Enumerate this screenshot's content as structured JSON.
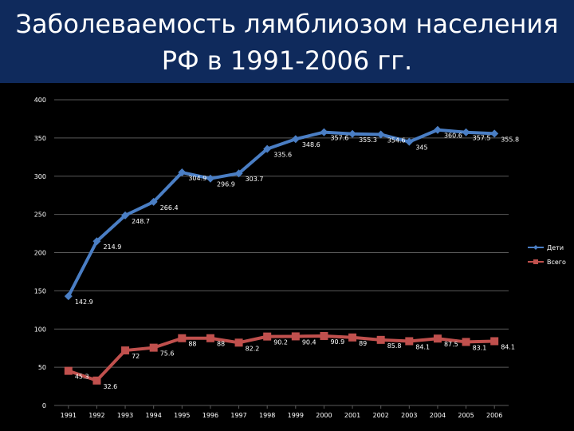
{
  "slide": {
    "title_line1": "Заболеваемость лямблиозом населения",
    "title_line2": "РФ в 1991-2006 гг."
  },
  "colors": {
    "title_band": "#0f2a5c",
    "background": "#000000",
    "series_children": "#4a7ec4",
    "series_total": "#c0504d",
    "grid": "#5a5a5a",
    "text": "#ffffff"
  },
  "chart_data": {
    "type": "line",
    "categories": [
      "1991",
      "1992",
      "1993",
      "1994",
      "1995",
      "1996",
      "1997",
      "1998",
      "1999",
      "2000",
      "2001",
      "2002",
      "2003",
      "2004",
      "2005",
      "2006"
    ],
    "series": [
      {
        "name": "Дети",
        "marker": "diamond",
        "values": [
          142.9,
          214.9,
          248.7,
          266.4,
          304.9,
          296.9,
          303.7,
          335.6,
          348.6,
          357.6,
          355.3,
          354.6,
          345,
          360.6,
          357.5,
          355.8
        ],
        "labels": [
          "142.9",
          "214.9",
          "248.7",
          "266.4",
          "304.9",
          "296.9",
          "303.7",
          "335.6",
          "348.6",
          "357.6",
          "355.3",
          "354.6",
          "345",
          "360.6",
          "357.5",
          "355.8"
        ]
      },
      {
        "name": "Всего",
        "marker": "square",
        "values": [
          45.3,
          32.6,
          72,
          75.6,
          88,
          88,
          82.2,
          90.2,
          90.4,
          90.9,
          89,
          85.8,
          84.1,
          87.5,
          83.1,
          84.1
        ],
        "labels": [
          "45.3",
          "32.6",
          "72",
          "75.6",
          "88",
          "88",
          "82.2",
          "90.2",
          "90.4",
          "90.9",
          "89",
          "85.8",
          "84.1",
          "87.5",
          "83.1",
          "84.1"
        ]
      }
    ],
    "yticks": [
      "0",
      "50",
      "100",
      "150",
      "200",
      "250",
      "300",
      "350",
      "400"
    ],
    "ylim": [
      0,
      400
    ],
    "grid": true,
    "legend_position": "right"
  }
}
